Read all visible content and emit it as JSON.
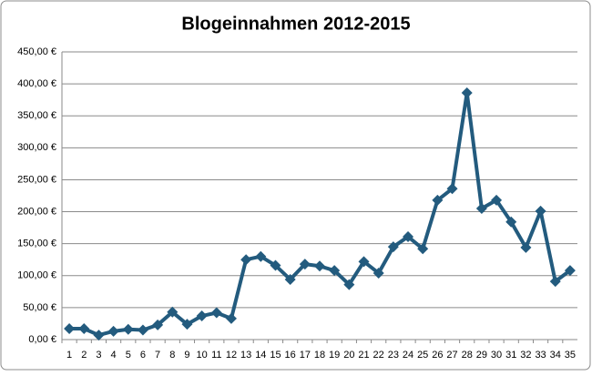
{
  "chart_data": {
    "type": "line",
    "title": "Blogeinnahmen 2012-2015",
    "categories": [
      "1",
      "2",
      "3",
      "4",
      "5",
      "6",
      "7",
      "8",
      "9",
      "10",
      "11",
      "12",
      "13",
      "14",
      "15",
      "16",
      "17",
      "18",
      "19",
      "20",
      "21",
      "22",
      "23",
      "24",
      "25",
      "26",
      "27",
      "28",
      "29",
      "30",
      "31",
      "32",
      "33",
      "34",
      "35"
    ],
    "series": [
      {
        "name": "Blogeinnahmen",
        "color": "#235b7e",
        "values": [
          17,
          17,
          7,
          13,
          16,
          15,
          23,
          43,
          24,
          37,
          42,
          33,
          125,
          130,
          116,
          94,
          118,
          115,
          108,
          86,
          122,
          104,
          145,
          161,
          142,
          218,
          236,
          386,
          205,
          218,
          184,
          144,
          201,
          91,
          108
        ]
      }
    ],
    "ylim": [
      0,
      450
    ],
    "yticks": [
      {
        "value": 0,
        "label": "0,00 €"
      },
      {
        "value": 50,
        "label": "50,00 €"
      },
      {
        "value": 100,
        "label": "100,00 €"
      },
      {
        "value": 150,
        "label": "150,00 €"
      },
      {
        "value": 200,
        "label": "200,00 €"
      },
      {
        "value": 250,
        "label": "250,00 €"
      },
      {
        "value": 300,
        "label": "300,00 €"
      },
      {
        "value": 350,
        "label": "350,00 €"
      },
      {
        "value": 400,
        "label": "400,00 €"
      },
      {
        "value": 450,
        "label": "450,00 €"
      }
    ],
    "grid": true
  }
}
